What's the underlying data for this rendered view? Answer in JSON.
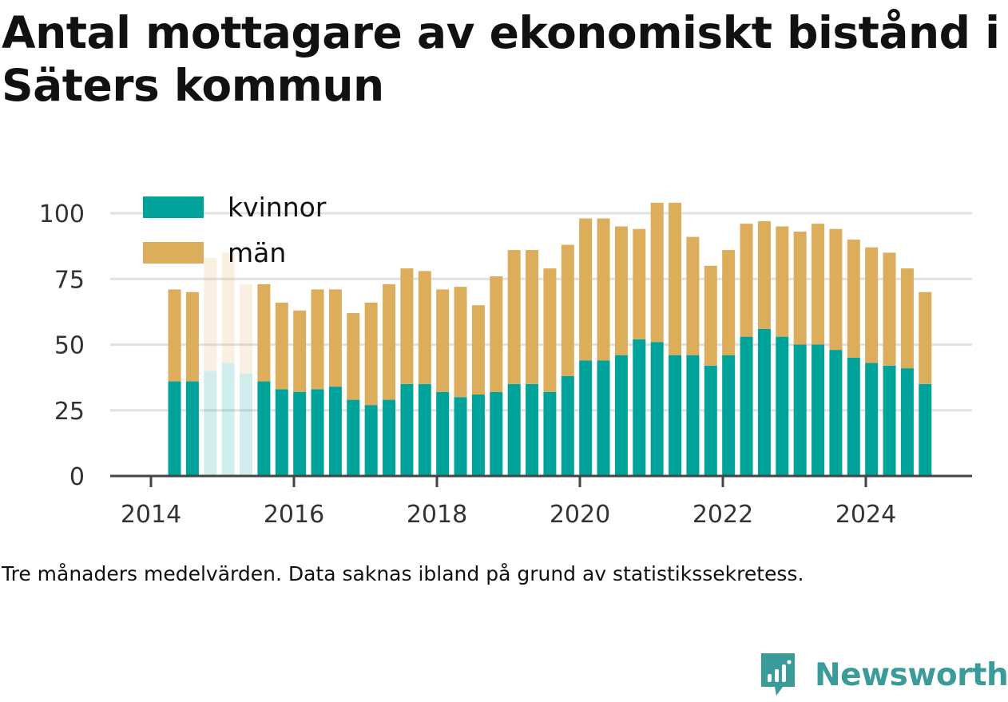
{
  "title": "Antal mottagare av ekonomiskt bistånd i Säters kommun",
  "caption": "Tre månaders medelvärden. Data saknas ibland på grund av statistikssekretess.",
  "brand": "Newsworthy",
  "colors": {
    "kvinnor": "#00a39a",
    "man": "#dcad5b",
    "grid": "#e2e2e2",
    "axis": "#444444",
    "brand": "#3a9b98"
  },
  "chart_data": {
    "type": "bar",
    "stacked": true,
    "xlim": [
      2014,
      2025.0
    ],
    "ylim": [
      0,
      110
    ],
    "yticks": [
      0,
      25,
      50,
      75,
      100
    ],
    "xticks": [
      2014,
      2016,
      2018,
      2020,
      2022,
      2024
    ],
    "grid": "horizontal",
    "legend": "top-left",
    "x": [
      2014.33,
      2014.58,
      2014.83,
      2015.08,
      2015.33,
      2015.58,
      2015.83,
      2016.08,
      2016.33,
      2016.58,
      2016.83,
      2017.08,
      2017.33,
      2017.58,
      2017.83,
      2018.08,
      2018.33,
      2018.58,
      2018.83,
      2019.08,
      2019.33,
      2019.58,
      2019.83,
      2020.08,
      2020.33,
      2020.58,
      2020.83,
      2021.08,
      2021.33,
      2021.58,
      2021.83,
      2022.08,
      2022.33,
      2022.58,
      2022.83,
      2023.08,
      2023.33,
      2023.58,
      2023.83,
      2024.08,
      2024.33,
      2024.58,
      2024.83
    ],
    "series": [
      {
        "name": "kvinnor",
        "values": [
          36,
          36,
          40,
          43,
          39,
          36,
          33,
          32,
          33,
          34,
          29,
          27,
          29,
          35,
          35,
          32,
          30,
          31,
          32,
          35,
          35,
          32,
          38,
          44,
          44,
          46,
          52,
          51,
          46,
          46,
          42,
          46,
          53,
          56,
          53,
          50,
          50,
          48,
          45,
          43,
          42,
          41,
          35
        ]
      },
      {
        "name": "män",
        "values": [
          35,
          34,
          43,
          42,
          34,
          37,
          33,
          31,
          38,
          37,
          33,
          39,
          44,
          44,
          43,
          39,
          42,
          34,
          44,
          51,
          51,
          47,
          50,
          54,
          54,
          49,
          42,
          53,
          58,
          45,
          38,
          40,
          43,
          41,
          42,
          43,
          46,
          46,
          45,
          44,
          43,
          38,
          35
        ]
      }
    ],
    "faded_indices": [
      2,
      3,
      4
    ]
  }
}
